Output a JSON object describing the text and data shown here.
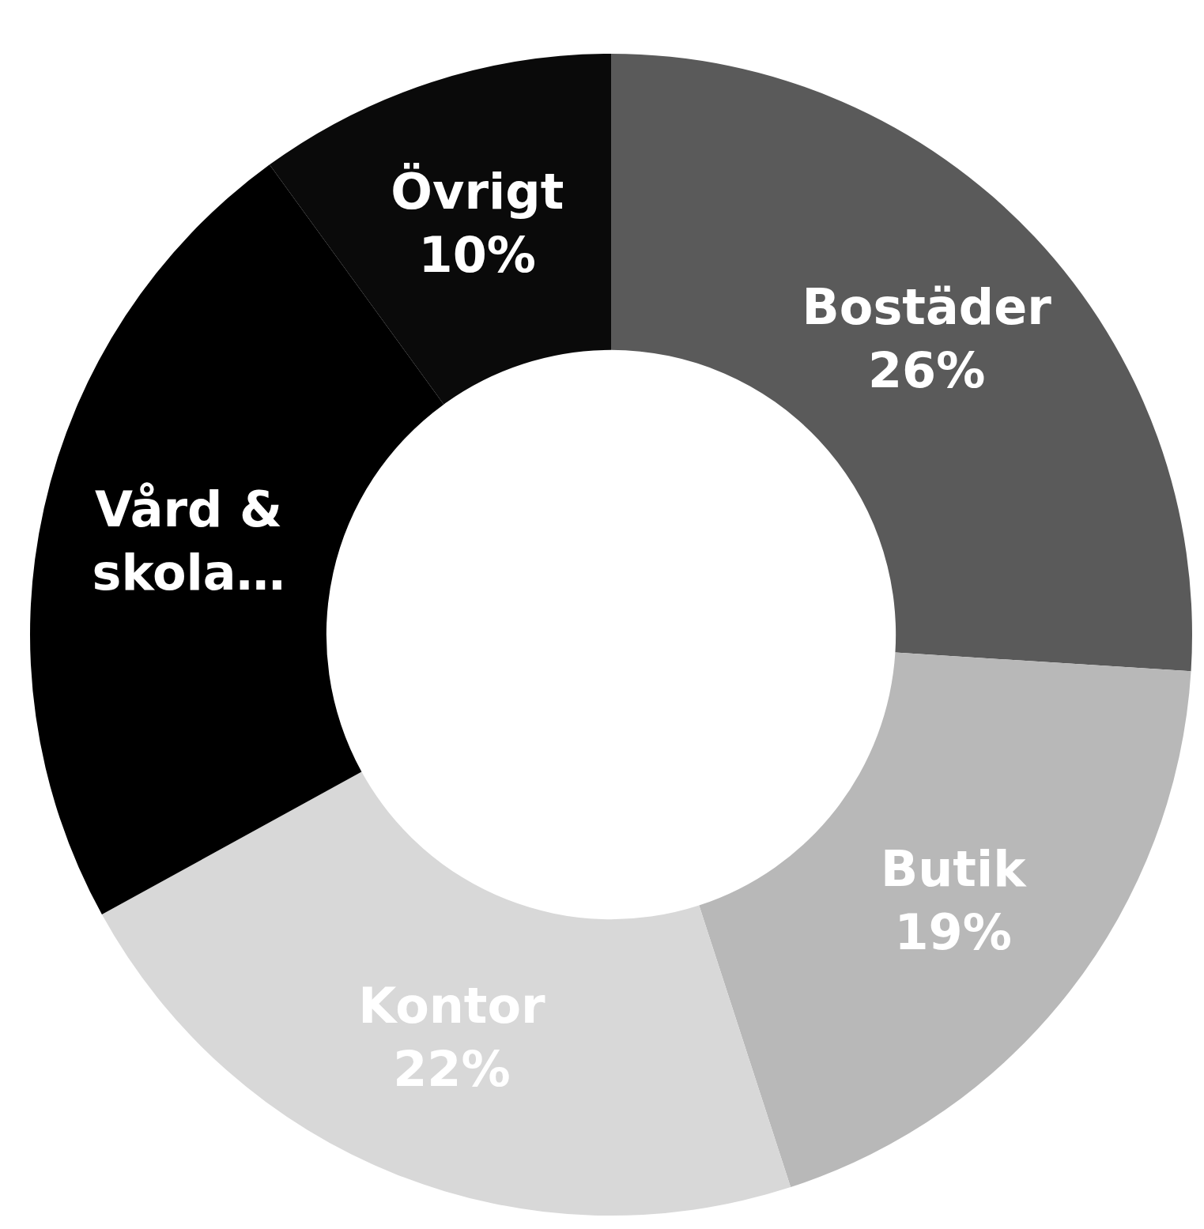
{
  "chart_data": {
    "type": "donut",
    "categories": [
      "Bostäder",
      "Butik",
      "Kontor",
      "Vård & skola…",
      "Övrigt"
    ],
    "values": [
      26,
      19,
      22,
      23,
      10
    ],
    "colors": [
      "#5a5a5a",
      "#b8b8b8",
      "#d8d8d8",
      "#000000",
      "#0a0a0a"
    ],
    "value_labels": [
      "26%",
      "19%",
      "22%",
      null,
      "10%"
    ]
  }
}
